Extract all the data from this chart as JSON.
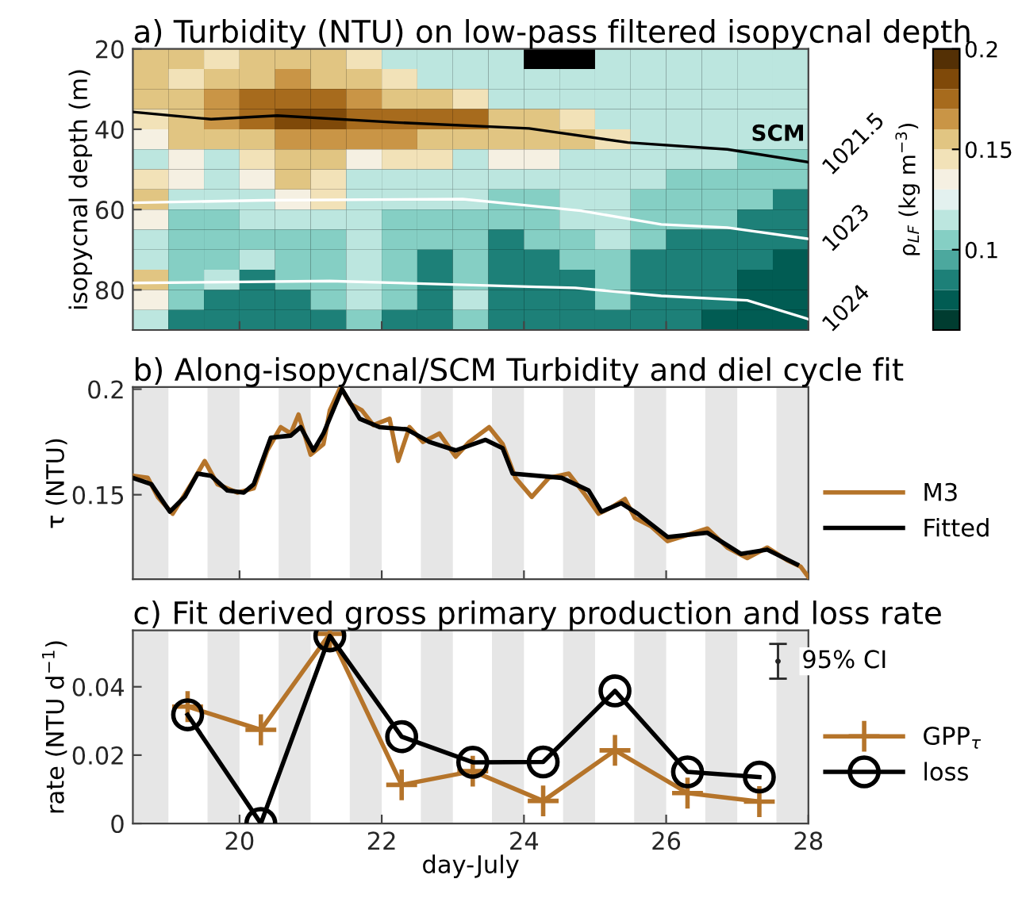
{
  "chart_data": [
    {
      "type": "heatmap",
      "title": "a) Turbidity (NTU) on low-pass filtered isopycnal depth",
      "ylabel": "isopycnal depth (m)",
      "y2label": "ρ$_{LF}$ (kg m$^{−3}$)",
      "x": [
        18.75,
        19.25,
        19.75,
        20.25,
        20.75,
        21.25,
        21.75,
        22.25,
        22.75,
        23.25,
        23.75,
        24.25,
        24.75,
        25.25,
        25.75,
        26.25,
        26.75,
        27.25,
        27.75
      ],
      "y": [
        22.5,
        27.5,
        32.5,
        37.5,
        42.5,
        47.5,
        52.5,
        57.5,
        62.5,
        67.5,
        72.5,
        77.5,
        82.5,
        87.5
      ],
      "xlim": [
        18.5,
        28
      ],
      "xticks": [
        20,
        22,
        24,
        26,
        28
      ],
      "ylim": [
        90,
        20
      ],
      "yticks": [
        20,
        40,
        60,
        80
      ],
      "tick_labels": "y",
      "clim": [
        0.06,
        0.2
      ],
      "cticks": [
        0.1,
        0.15,
        0.2
      ],
      "cells": [
        [
          0.15,
          0.15,
          0.14,
          0.15,
          0.15,
          0.15,
          0.14,
          0.12,
          0.12,
          0.11,
          0.11,
          null,
          null,
          0.12,
          0.11,
          0.11,
          0.11,
          0.11,
          0.11
        ],
        [
          0.15,
          0.14,
          0.15,
          0.15,
          0.16,
          0.15,
          0.15,
          0.14,
          0.12,
          0.12,
          0.12,
          0.12,
          0.12,
          0.12,
          0.11,
          0.11,
          0.11,
          0.11,
          0.11
        ],
        [
          0.15,
          0.15,
          0.16,
          0.17,
          0.18,
          0.17,
          0.16,
          0.15,
          0.15,
          0.14,
          0.12,
          0.12,
          0.12,
          0.12,
          0.11,
          0.11,
          0.11,
          0.11,
          0.11
        ],
        [
          0.14,
          0.15,
          0.16,
          0.17,
          0.19,
          0.19,
          0.18,
          0.18,
          0.17,
          0.17,
          0.15,
          0.15,
          0.14,
          0.12,
          0.11,
          0.11,
          0.11,
          0.11,
          0.11
        ],
        [
          0.13,
          0.15,
          0.15,
          0.15,
          0.16,
          0.16,
          0.16,
          0.16,
          0.15,
          0.15,
          0.15,
          0.15,
          0.15,
          0.14,
          0.12,
          0.11,
          0.11,
          0.11,
          0.11
        ],
        [
          0.12,
          0.13,
          0.12,
          0.14,
          0.15,
          0.15,
          0.13,
          0.14,
          0.14,
          0.12,
          0.13,
          0.13,
          0.12,
          0.12,
          0.11,
          0.11,
          0.11,
          0.1,
          0.1
        ],
        [
          0.14,
          0.13,
          0.12,
          0.13,
          0.15,
          0.14,
          0.12,
          0.12,
          0.12,
          0.11,
          0.11,
          0.11,
          0.11,
          0.11,
          0.11,
          0.1,
          0.1,
          0.1,
          0.1
        ],
        [
          0.15,
          0.11,
          0.11,
          0.12,
          0.13,
          0.14,
          0.12,
          0.11,
          0.11,
          0.11,
          0.1,
          0.1,
          0.11,
          0.11,
          0.1,
          0.1,
          0.1,
          0.1,
          0.09
        ],
        [
          0.13,
          0.1,
          0.1,
          0.11,
          0.11,
          0.12,
          0.11,
          0.1,
          0.1,
          0.1,
          0.1,
          0.1,
          0.11,
          0.12,
          0.1,
          0.1,
          0.1,
          0.09,
          0.09
        ],
        [
          0.11,
          0.1,
          0.1,
          0.1,
          0.1,
          0.1,
          0.11,
          0.1,
          0.1,
          0.1,
          0.09,
          0.1,
          0.1,
          0.11,
          0.1,
          0.09,
          0.09,
          0.09,
          0.08
        ],
        [
          0.12,
          0.1,
          0.1,
          0.11,
          0.1,
          0.1,
          0.11,
          0.1,
          0.09,
          0.1,
          0.09,
          0.09,
          0.1,
          0.1,
          0.09,
          0.09,
          0.08,
          0.08,
          0.07
        ],
        [
          0.15,
          0.1,
          0.12,
          0.09,
          0.1,
          0.1,
          0.11,
          0.1,
          0.09,
          0.1,
          0.09,
          0.09,
          0.09,
          0.1,
          0.09,
          0.09,
          0.08,
          0.07,
          0.07
        ],
        [
          0.13,
          0.1,
          0.09,
          0.09,
          0.09,
          0.1,
          0.11,
          0.1,
          0.09,
          0.11,
          0.09,
          0.09,
          0.09,
          0.1,
          0.09,
          0.09,
          0.08,
          0.07,
          0.07
        ],
        [
          0.11,
          0.09,
          0.08,
          0.08,
          0.09,
          0.09,
          0.1,
          0.09,
          0.08,
          0.1,
          0.08,
          0.08,
          0.08,
          0.09,
          0.08,
          0.08,
          0.07,
          0.07,
          0.07
        ]
      ],
      "series": [
        {
          "type": "line",
          "name": "1021.5",
          "color": "#000000",
          "x": [
            18.5,
            19.6,
            20.53,
            22.2,
            24.07,
            25.46,
            26.86,
            28.0
          ],
          "values": [
            35.7,
            37.5,
            36.6,
            38.3,
            39.8,
            43.3,
            45,
            48.2
          ]
        },
        {
          "type": "line",
          "name": "1023",
          "color": "#ffffff",
          "x": [
            18.5,
            20.34,
            23.14,
            24.8,
            25.93,
            26.86,
            28.0
          ],
          "values": [
            58.3,
            57.7,
            57.4,
            60.3,
            63.7,
            64.5,
            67.3
          ]
        },
        {
          "type": "line",
          "name": "1024",
          "color": "#ffffff",
          "x": [
            18.5,
            21.27,
            24.07,
            24.72,
            25.93,
            27.14,
            28.0
          ],
          "values": [
            78.3,
            77.8,
            79.2,
            79.5,
            81.5,
            82.6,
            87.3
          ]
        }
      ],
      "annotations": [
        "SCM"
      ]
    },
    {
      "type": "line",
      "title": "b) Along-isopycnal/SCM Turbidity and diel cycle fit",
      "ylabel": "τ (NTU)",
      "xlim": [
        18.5,
        28
      ],
      "xticks": [
        20,
        22,
        24,
        26,
        28
      ],
      "ylim": [
        0.11,
        0.201
      ],
      "yticks": [
        0.15,
        0.2
      ],
      "tick_labels": "y",
      "legend": "right",
      "bands": [
        {
          "axis": "x",
          "from": 18.5,
          "to": 19.0,
          "color": "#e6e6e6"
        },
        {
          "axis": "x",
          "from": 19.55,
          "to": 20.0,
          "color": "#e6e6e6"
        },
        {
          "axis": "x",
          "from": 20.55,
          "to": 21.0,
          "color": "#e6e6e6"
        },
        {
          "axis": "x",
          "from": 21.55,
          "to": 22.0,
          "color": "#e6e6e6"
        },
        {
          "axis": "x",
          "from": 22.55,
          "to": 23.0,
          "color": "#e6e6e6"
        },
        {
          "axis": "x",
          "from": 23.55,
          "to": 24.0,
          "color": "#e6e6e6"
        },
        {
          "axis": "x",
          "from": 24.55,
          "to": 25.0,
          "color": "#e6e6e6"
        },
        {
          "axis": "x",
          "from": 25.55,
          "to": 26.0,
          "color": "#e6e6e6"
        },
        {
          "axis": "x",
          "from": 26.55,
          "to": 27.0,
          "color": "#e6e6e6"
        },
        {
          "axis": "x",
          "from": 27.55,
          "to": 28.0,
          "color": "#e6e6e6"
        }
      ],
      "series": [
        {
          "name": "M3",
          "color": "#b5742a",
          "x": [
            18.5,
            18.71,
            18.85,
            19.06,
            19.32,
            19.51,
            19.69,
            19.97,
            20.2,
            20.39,
            20.58,
            20.72,
            20.83,
            21.0,
            21.18,
            21.27,
            21.42,
            21.56,
            21.72,
            21.88,
            22.11,
            22.23,
            22.39,
            22.58,
            22.81,
            23.04,
            23.23,
            23.51,
            23.7,
            23.88,
            24.11,
            24.35,
            24.63,
            24.86,
            25.05,
            25.23,
            25.42,
            25.56,
            25.79,
            26.02,
            26.3,
            26.58,
            26.86,
            27.14,
            27.42,
            27.7,
            27.89,
            28.0
          ],
          "values": [
            0.159,
            0.158,
            0.149,
            0.141,
            0.155,
            0.166,
            0.155,
            0.151,
            0.153,
            0.171,
            0.182,
            0.179,
            0.188,
            0.169,
            0.174,
            0.19,
            0.201,
            0.193,
            0.19,
            0.183,
            0.186,
            0.166,
            0.182,
            0.175,
            0.179,
            0.168,
            0.175,
            0.182,
            0.174,
            0.158,
            0.149,
            0.158,
            0.16,
            0.15,
            0.141,
            0.144,
            0.148,
            0.139,
            0.135,
            0.128,
            0.131,
            0.134,
            0.125,
            0.12,
            0.125,
            0.119,
            0.116,
            0.111
          ]
        },
        {
          "name": "Fitted",
          "color": "#000000",
          "x": [
            18.5,
            18.76,
            19.02,
            19.23,
            19.41,
            19.6,
            19.83,
            20.06,
            20.2,
            20.44,
            20.72,
            20.86,
            21.04,
            21.18,
            21.44,
            21.69,
            21.97,
            22.35,
            22.67,
            23.04,
            23.46,
            23.7,
            23.84,
            24.53,
            24.91,
            25.09,
            25.37,
            25.6,
            26.02,
            26.58,
            27.05,
            27.42,
            27.84
          ],
          "values": [
            0.158,
            0.155,
            0.142,
            0.149,
            0.16,
            0.159,
            0.152,
            0.151,
            0.155,
            0.177,
            0.178,
            0.182,
            0.171,
            0.179,
            0.2,
            0.186,
            0.182,
            0.181,
            0.175,
            0.171,
            0.176,
            0.172,
            0.16,
            0.158,
            0.152,
            0.142,
            0.146,
            0.141,
            0.13,
            0.132,
            0.122,
            0.124,
            0.117
          ]
        }
      ]
    },
    {
      "type": "line",
      "title": "c) Fit derived gross primary production and loss rate",
      "ylabel": "rate (NTU d$^{−1}$)",
      "xlabel": "day-July",
      "xlim": [
        18.5,
        28
      ],
      "xticks": [
        20,
        22,
        24,
        26,
        28
      ],
      "ylim": [
        0,
        0.0565
      ],
      "yticks": [
        0,
        0.02,
        0.04
      ],
      "legend": "right",
      "bands": [
        {
          "axis": "x",
          "from": 18.5,
          "to": 19.0,
          "color": "#e6e6e6"
        },
        {
          "axis": "x",
          "from": 19.55,
          "to": 20.0,
          "color": "#e6e6e6"
        },
        {
          "axis": "x",
          "from": 20.55,
          "to": 21.0,
          "color": "#e6e6e6"
        },
        {
          "axis": "x",
          "from": 21.55,
          "to": 22.0,
          "color": "#e6e6e6"
        },
        {
          "axis": "x",
          "from": 22.55,
          "to": 23.0,
          "color": "#e6e6e6"
        },
        {
          "axis": "x",
          "from": 23.55,
          "to": 24.0,
          "color": "#e6e6e6"
        },
        {
          "axis": "x",
          "from": 24.55,
          "to": 25.0,
          "color": "#e6e6e6"
        },
        {
          "axis": "x",
          "from": 25.55,
          "to": 26.0,
          "color": "#e6e6e6"
        },
        {
          "axis": "x",
          "from": 26.55,
          "to": 27.0,
          "color": "#e6e6e6"
        },
        {
          "axis": "x",
          "from": 27.55,
          "to": 28.0,
          "color": "#e6e6e6"
        }
      ],
      "series": [
        {
          "name": "GPP$_{τ}$",
          "color": "#b5742a",
          "marker": "cross",
          "x": [
            19.27,
            20.3,
            21.27,
            22.28,
            23.28,
            24.27,
            25.28,
            26.3,
            27.31
          ],
          "values": [
            0.0342,
            0.0274,
            0.0555,
            0.0113,
            0.0153,
            0.0066,
            0.0214,
            0.0089,
            0.0064
          ],
          "errors": [
            0.003,
            0.002,
            0.001,
            0.002,
            0.003,
            0.002,
            0.002,
            0.002,
            0.001
          ]
        },
        {
          "name": "loss",
          "color": "#000000",
          "marker": "circle",
          "x": [
            19.27,
            20.3,
            21.27,
            22.28,
            23.28,
            24.27,
            25.28,
            26.3,
            27.31
          ],
          "values": [
            0.0318,
            0.0,
            0.0549,
            0.0254,
            0.0179,
            0.018,
            0.0388,
            0.0151,
            0.0136
          ]
        }
      ],
      "annotations": [
        "95% CI"
      ]
    }
  ]
}
